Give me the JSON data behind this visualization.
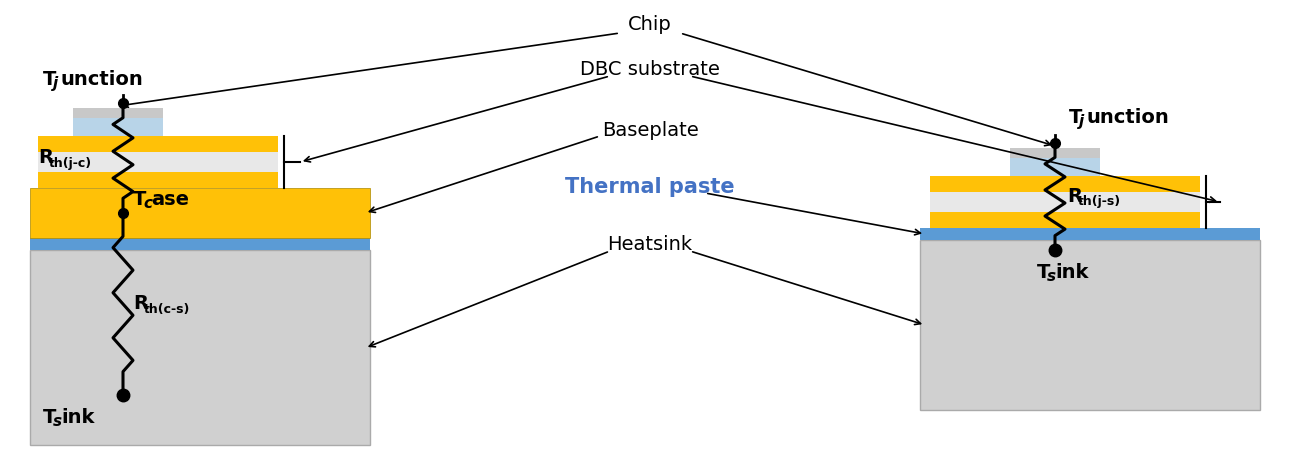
{
  "bg_color": "#ffffff",
  "gold_color": "#FFC107",
  "blue_color": "#5B9BD5",
  "gray_color": "#D0D0D0",
  "lightblue_chip": "#B8D4E8",
  "silver_chip": "#C8C8C8",
  "ceramic_color": "#E8E8E8",
  "label_chip": "Chip",
  "label_dbc": "DBC substrate",
  "label_baseplate": "Baseplate",
  "label_thermal_paste": "Thermal paste",
  "label_heatsink": "Heatsink",
  "fs_label": 13,
  "fs_subscript": 10,
  "fs_thermal": 15
}
